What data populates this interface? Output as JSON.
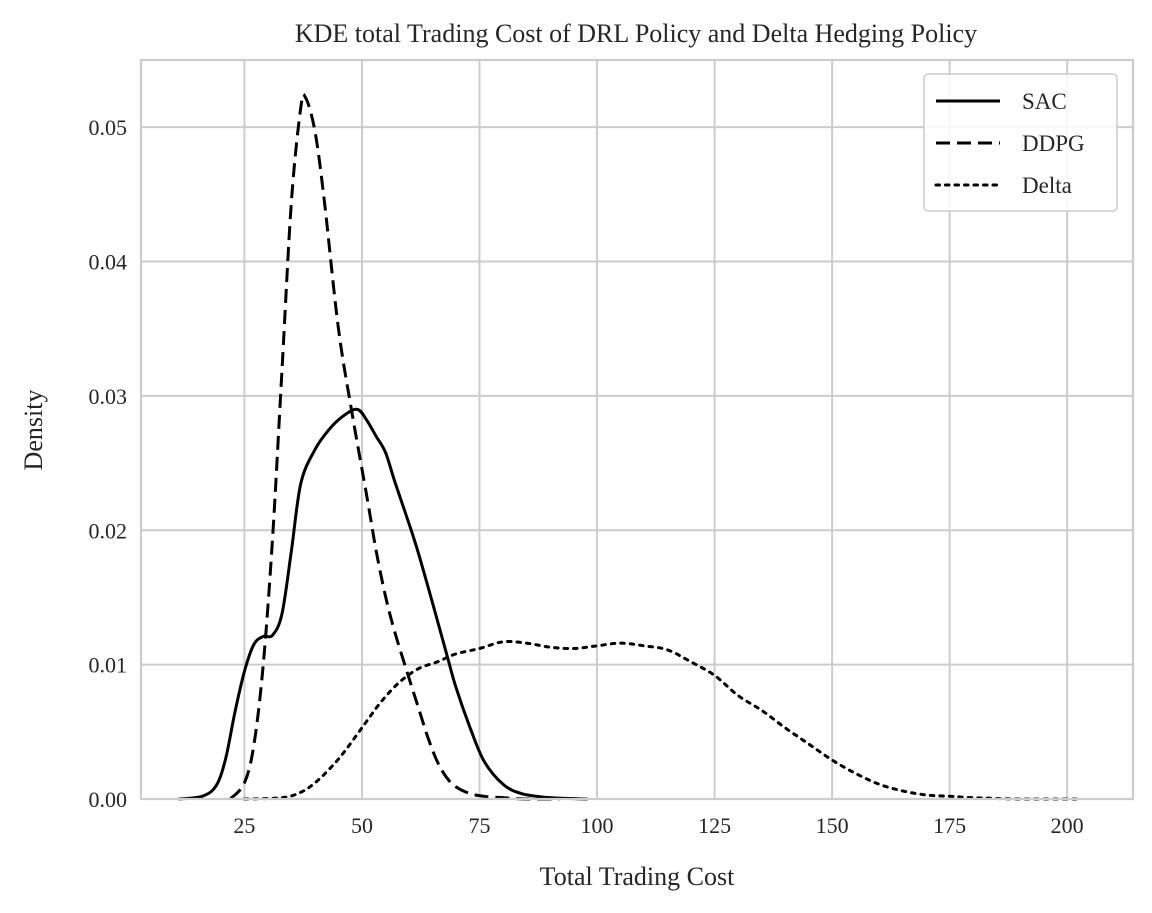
{
  "chart_data": {
    "type": "line",
    "title": "KDE total Trading Cost of DRL Policy and Delta Hedging Policy",
    "xlabel": "Total Trading Cost",
    "ylabel": "Density",
    "xlim": [
      3,
      214
    ],
    "ylim": [
      0,
      0.055
    ],
    "xticks": [
      25,
      50,
      75,
      100,
      125,
      150,
      175,
      200
    ],
    "yticks": [
      0.0,
      0.01,
      0.02,
      0.03,
      0.04,
      0.05
    ],
    "xtick_labels": [
      "25",
      "50",
      "75",
      "100",
      "125",
      "150",
      "175",
      "200"
    ],
    "ytick_labels": [
      "0.00",
      "0.01",
      "0.02",
      "0.03",
      "0.04",
      "0.05"
    ],
    "grid": true,
    "legend_position": "top-right",
    "series": [
      {
        "name": "SAC",
        "style": "solid",
        "color": "#000000",
        "x": [
          11,
          16,
          19,
          21,
          23,
          25,
          27,
          29,
          31,
          33,
          35,
          37,
          40,
          43,
          46,
          49,
          51,
          53,
          55,
          57,
          60,
          62,
          65,
          68,
          70,
          73,
          76,
          80,
          84,
          90,
          98
        ],
        "y": [
          0,
          0.0002,
          0.001,
          0.003,
          0.0065,
          0.0095,
          0.0115,
          0.0121,
          0.0122,
          0.0138,
          0.0185,
          0.0235,
          0.026,
          0.0275,
          0.0285,
          0.029,
          0.0282,
          0.027,
          0.0258,
          0.0236,
          0.0205,
          0.0183,
          0.0146,
          0.0108,
          0.0083,
          0.0053,
          0.0028,
          0.0011,
          0.0004,
          0.0001,
          0
        ]
      },
      {
        "name": "DDPG",
        "style": "dashed",
        "color": "#000000",
        "x": [
          22,
          25,
          27,
          29,
          31,
          33,
          35,
          37,
          38,
          40,
          42,
          45,
          48,
          51,
          53,
          55,
          57,
          60,
          62,
          64,
          66,
          68,
          70,
          73,
          76,
          80,
          85,
          92
        ],
        "y": [
          0,
          0.0012,
          0.004,
          0.01,
          0.0195,
          0.032,
          0.0445,
          0.0515,
          0.0522,
          0.0497,
          0.0445,
          0.035,
          0.0285,
          0.0226,
          0.0185,
          0.0151,
          0.0124,
          0.009,
          0.0068,
          0.0046,
          0.0028,
          0.0016,
          0.0009,
          0.0004,
          0.0002,
          0.0001,
          0,
          0
        ]
      },
      {
        "name": "Delta",
        "style": "dotted",
        "color": "#000000",
        "x": [
          25,
          33,
          37,
          40,
          43,
          46,
          50,
          54,
          58,
          62,
          66,
          70,
          75,
          80,
          85,
          90,
          95,
          100,
          105,
          110,
          115,
          120,
          125,
          130,
          135,
          140,
          145,
          150,
          155,
          160,
          165,
          170,
          175,
          180,
          190,
          203
        ],
        "y": [
          0,
          0.0001,
          0.0005,
          0.0012,
          0.0022,
          0.0034,
          0.0053,
          0.0072,
          0.0087,
          0.0097,
          0.0102,
          0.0108,
          0.0112,
          0.0117,
          0.0116,
          0.0113,
          0.0112,
          0.0114,
          0.0116,
          0.0114,
          0.0111,
          0.0102,
          0.0092,
          0.0077,
          0.0066,
          0.0053,
          0.0041,
          0.0029,
          0.0019,
          0.0011,
          0.0006,
          0.0003,
          0.0002,
          0.0001,
          0,
          0
        ]
      }
    ]
  }
}
